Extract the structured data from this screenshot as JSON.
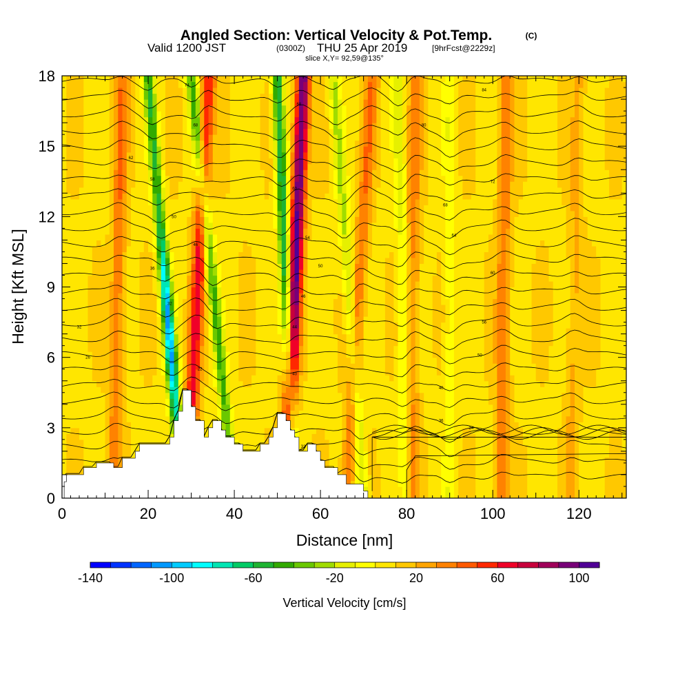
{
  "title": {
    "main": "Angled Section: Vertical Velocity & Pot.Temp.",
    "copyright": "(C)",
    "valid_prefix": "Valid 1200 JST",
    "utc": "(0300Z)",
    "valid_suffix": "THU 25 Apr 2019",
    "forecast": "[9hrFcst@2229z]",
    "slice": "slice X,Y= 92,59@135°"
  },
  "chart_data": {
    "type": "heatmap",
    "xlabel": "Distance [nm]",
    "ylabel": "Height [Kft MSL]",
    "xlim": [
      0,
      131
    ],
    "ylim": [
      0,
      18
    ],
    "x_ticks": [
      "0",
      "20",
      "40",
      "60",
      "80",
      "100",
      "120"
    ],
    "y_ticks": [
      "0",
      "3",
      "6",
      "9",
      "12",
      "15",
      "18"
    ],
    "colorbar": {
      "title": "Vertical Velocity [cm/s]",
      "range": [
        -140,
        110
      ],
      "step": 10,
      "tick_labels": [
        "-140",
        "-100",
        "-60",
        "-20",
        "20",
        "60",
        "100"
      ],
      "colors": [
        "#0000ff",
        "#0033ff",
        "#0066ff",
        "#0099ff",
        "#00ccff",
        "#00ffff",
        "#00e6b4",
        "#00cc66",
        "#1eb432",
        "#32aa00",
        "#6ac800",
        "#a0dc00",
        "#e6f000",
        "#ffff00",
        "#ffe600",
        "#ffc800",
        "#ffa500",
        "#ff8200",
        "#ff5a00",
        "#ff2800",
        "#f00028",
        "#c8003c",
        "#a0005a",
        "#780078",
        "#500096"
      ]
    },
    "terrain_kft": [
      [
        0,
        1.0
      ],
      [
        1,
        1.0
      ],
      [
        1,
        0.7
      ],
      [
        0.5,
        0.7
      ],
      [
        0.5,
        0
      ],
      [
        0,
        0
      ],
      [
        0,
        1.0
      ]
    ],
    "terrain_profile_kft": [
      [
        0.5,
        0.7
      ],
      [
        1,
        0.7
      ],
      [
        1,
        1.0
      ],
      [
        5,
        1.0
      ],
      [
        5,
        1.3
      ],
      [
        8,
        1.3
      ],
      [
        8,
        1.5
      ],
      [
        12,
        1.5
      ],
      [
        12,
        1.3
      ],
      [
        14,
        1.3
      ],
      [
        14,
        1.7
      ],
      [
        17,
        1.7
      ],
      [
        17,
        2.0
      ],
      [
        18,
        2.0
      ],
      [
        18,
        2.3
      ],
      [
        25,
        2.3
      ],
      [
        25,
        2.6
      ],
      [
        26,
        2.6
      ],
      [
        26,
        3.3
      ],
      [
        27,
        3.3
      ],
      [
        27,
        3.7
      ],
      [
        28,
        3.7
      ],
      [
        28,
        4.6
      ],
      [
        30,
        4.6
      ],
      [
        30,
        3.9
      ],
      [
        31,
        3.9
      ],
      [
        31,
        3.3
      ],
      [
        33,
        3.3
      ],
      [
        33,
        2.6
      ],
      [
        34,
        2.6
      ],
      [
        34,
        3.0
      ],
      [
        35,
        3.0
      ],
      [
        35,
        3.3
      ],
      [
        37,
        3.3
      ],
      [
        37,
        2.9
      ],
      [
        38,
        2.9
      ],
      [
        38,
        2.6
      ],
      [
        40,
        2.6
      ],
      [
        40,
        2.3
      ],
      [
        42,
        2.3
      ],
      [
        42,
        2.0
      ],
      [
        46,
        2.0
      ],
      [
        46,
        2.3
      ],
      [
        48,
        2.3
      ],
      [
        48,
        2.6
      ],
      [
        49,
        2.6
      ],
      [
        49,
        3.0
      ],
      [
        50,
        3.0
      ],
      [
        50,
        3.6
      ],
      [
        52,
        3.6
      ],
      [
        52,
        3.3
      ],
      [
        53,
        3.3
      ],
      [
        53,
        2.9
      ],
      [
        54,
        2.9
      ],
      [
        54,
        2.6
      ],
      [
        55,
        2.6
      ],
      [
        55,
        2.0
      ],
      [
        57,
        2.0
      ],
      [
        57,
        2.3
      ],
      [
        59,
        2.3
      ],
      [
        59,
        2.0
      ],
      [
        60,
        2.0
      ],
      [
        60,
        1.6
      ],
      [
        61,
        1.6
      ],
      [
        61,
        1.3
      ],
      [
        64,
        1.3
      ],
      [
        64,
        1.0
      ],
      [
        66,
        1.0
      ],
      [
        66,
        0.6
      ],
      [
        70,
        0.6
      ],
      [
        70,
        0.3
      ],
      [
        71,
        0.3
      ],
      [
        71,
        0
      ]
    ],
    "updraft_bands": [
      {
        "x_bottom": 12,
        "x_top": 14,
        "strength": 30
      },
      {
        "x_bottom": 29,
        "x_top": 34,
        "strength": 55
      },
      {
        "x_bottom": 52,
        "x_top": 56,
        "strength": 95
      },
      {
        "x_bottom": 66,
        "x_top": 72,
        "strength": 30
      },
      {
        "x_bottom": 81,
        "x_top": 82,
        "strength": 25
      },
      {
        "x_bottom": 102,
        "x_top": 103,
        "strength": 30
      },
      {
        "x_bottom": 118,
        "x_top": 120,
        "strength": 15
      }
    ],
    "downdraft_bands": [
      {
        "x_bottom": 28,
        "x_top": 20,
        "strength": -110
      },
      {
        "x_bottom": 40,
        "x_top": 30,
        "strength": -50
      },
      {
        "x_bottom": 54,
        "x_top": 50,
        "strength": -70
      },
      {
        "x_bottom": 70,
        "x_top": 63,
        "strength": -30
      },
      {
        "x_bottom": 80,
        "x_top": 78,
        "strength": -20
      },
      {
        "x_bottom": 90,
        "x_top": 90,
        "strength": -15
      }
    ],
    "isentropes_C": {
      "count": 28,
      "surface_spacing_kft": 0.6,
      "labels": [
        {
          "x": 29,
          "y": 17.6,
          "text": "74"
        },
        {
          "x": 31,
          "y": 15.9,
          "text": "68"
        },
        {
          "x": 16,
          "y": 14.5,
          "text": "62"
        },
        {
          "x": 21,
          "y": 13.6,
          "text": "58"
        },
        {
          "x": 26,
          "y": 12.0,
          "text": "50"
        },
        {
          "x": 31,
          "y": 10.8,
          "text": "46"
        },
        {
          "x": 21,
          "y": 9.8,
          "text": "36"
        },
        {
          "x": 25,
          "y": 8.3,
          "text": "32"
        },
        {
          "x": 4,
          "y": 7.3,
          "text": "32"
        },
        {
          "x": 6,
          "y": 6.0,
          "text": "26"
        },
        {
          "x": 32,
          "y": 5.5,
          "text": "22"
        },
        {
          "x": 55,
          "y": 16.8,
          "text": "68"
        },
        {
          "x": 54,
          "y": 13.2,
          "text": "60"
        },
        {
          "x": 57,
          "y": 11.1,
          "text": "54"
        },
        {
          "x": 60,
          "y": 9.9,
          "text": "50"
        },
        {
          "x": 56,
          "y": 8.6,
          "text": "46"
        },
        {
          "x": 54,
          "y": 7.3,
          "text": "44"
        },
        {
          "x": 54,
          "y": 5.3,
          "text": "40"
        },
        {
          "x": 56,
          "y": 2.2,
          "text": "32"
        },
        {
          "x": 98,
          "y": 17.4,
          "text": "84"
        },
        {
          "x": 84,
          "y": 15.9,
          "text": "80"
        },
        {
          "x": 100,
          "y": 13.5,
          "text": "72"
        },
        {
          "x": 89,
          "y": 12.5,
          "text": "68"
        },
        {
          "x": 91,
          "y": 11.2,
          "text": "64"
        },
        {
          "x": 100,
          "y": 9.6,
          "text": "60"
        },
        {
          "x": 98,
          "y": 7.5,
          "text": "56"
        },
        {
          "x": 97,
          "y": 6.1,
          "text": "50"
        },
        {
          "x": 88,
          "y": 4.7,
          "text": "40"
        },
        {
          "x": 88,
          "y": 3.3,
          "text": "36"
        },
        {
          "x": 95,
          "y": 3.0,
          "text": "34"
        }
      ]
    }
  }
}
